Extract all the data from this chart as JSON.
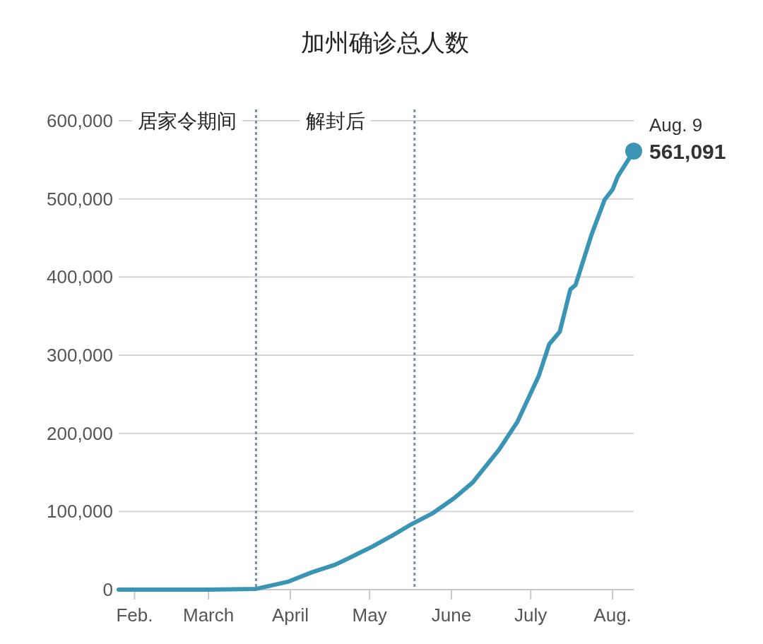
{
  "chart_data": {
    "type": "line",
    "title": "加州确诊总人数",
    "x": [
      "--01-26",
      "--03-01",
      "--03-19",
      "--03-23",
      "--03-31",
      "--04-09",
      "--04-18",
      "--04-23",
      "--05-02",
      "--05-10",
      "--05-17",
      "--05-25",
      "--06-02",
      "--06-09",
      "--06-19",
      "--06-26",
      "--07-04",
      "--07-08",
      "--07-12",
      "--07-16",
      "--07-18",
      "--07-24",
      "--07-29",
      "--08-01",
      "--08-03",
      "--08-09"
    ],
    "series": [
      {
        "color": "#3a95b5",
        "marker": "none",
        "values": [
          0,
          0,
          1000,
          4000,
          10000,
          22000,
          32000,
          40000,
          55000,
          70000,
          84000,
          98000,
          117000,
          137000,
          179000,
          215000,
          273000,
          314000,
          330000,
          384000,
          390000,
          454000,
          499000,
          512000,
          529000,
          561000
        ]
      },
      {
        "type": "scatter",
        "color": "#3a95b5",
        "marker": "circle",
        "x": [
          "--08-09"
        ],
        "values": [
          561091
        ],
        "value_labels": [
          "561,091"
        ]
      }
    ],
    "xlim": [
      "--01-26",
      "--08-09"
    ],
    "xticks": [
      {
        "value": "--02-01",
        "label": "Feb."
      },
      {
        "value": "--03-01",
        "label": "March"
      },
      {
        "value": "--04-01",
        "label": "April"
      },
      {
        "value": "--05-01",
        "label": "May"
      },
      {
        "value": "--06-01",
        "label": "June"
      },
      {
        "value": "--07-01",
        "label": "July"
      },
      {
        "value": "--08-01",
        "label": "Aug."
      }
    ],
    "ylim": [
      0,
      600000
    ],
    "yticks": [
      {
        "value": 0,
        "label": "0"
      },
      {
        "value": 100000,
        "label": "100,000"
      },
      {
        "value": 200000,
        "label": "200,000"
      },
      {
        "value": 300000,
        "label": "300,000"
      },
      {
        "value": 400000,
        "label": "400,000"
      },
      {
        "value": 500000,
        "label": "500,000"
      },
      {
        "value": 600000,
        "label": "600,000"
      }
    ],
    "grid": "y",
    "ref_lines": [
      {
        "axis": "x",
        "value": "--03-19",
        "label": "居家令期间",
        "color": "#7a8fa3",
        "line_style": "dotted"
      },
      {
        "axis": "x",
        "value": "--05-18",
        "label": "解封后",
        "color": "#7a8fa3",
        "line_style": "dotted"
      }
    ],
    "annotations": [
      {
        "text": "Aug. 9",
        "x": "--08-09",
        "y": 561091
      }
    ]
  }
}
